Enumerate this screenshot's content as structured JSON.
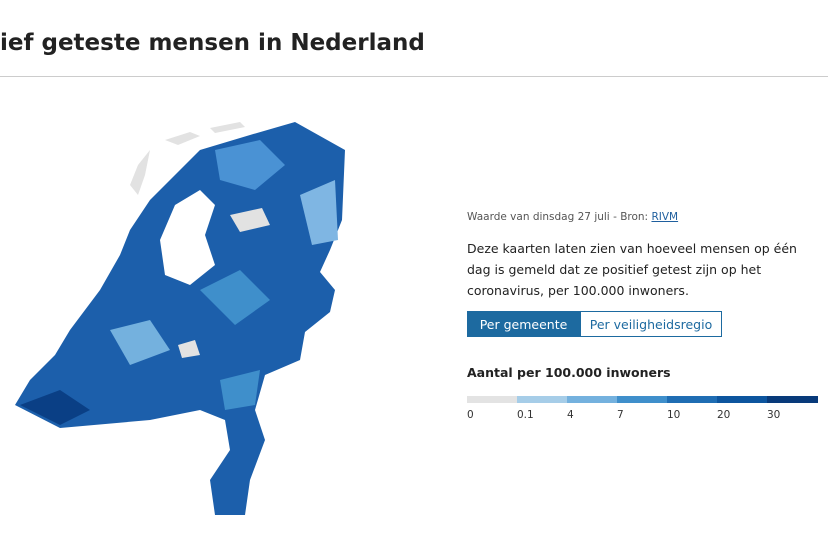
{
  "header": {
    "title": "ief geteste mensen in Nederland"
  },
  "info": {
    "source_prefix": "Waarde van dinsdag 27 juli - Bron:",
    "source_link": "RIVM",
    "description": "Deze kaarten laten zien van hoeveel mensen op één dag is gemeld dat ze positief getest zijn op het coronavirus, per 100.000 inwoners."
  },
  "tabs": [
    "Per gemeente",
    "Per veiligheidsregio"
  ],
  "legend": {
    "title": "Aantal per 100.000 inwoners",
    "labels": [
      "0",
      "0.1",
      "4",
      "7",
      "10",
      "20",
      "30"
    ],
    "colors": [
      "#e3e3e3",
      "#a6cde8",
      "#74b1de",
      "#3f8fcb",
      "#1f6db3",
      "#0d559e",
      "#083a7a"
    ]
  }
}
